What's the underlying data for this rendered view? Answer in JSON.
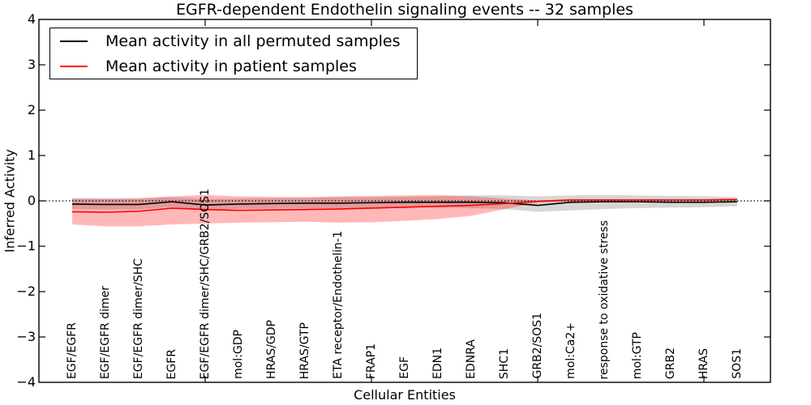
{
  "chart_data": {
    "type": "line",
    "title": "EGFR-dependent Endothelin signaling events -- 32 samples",
    "xlabel": "Cellular Entities",
    "ylabel": "Inferred Activity",
    "ylim": [
      -4,
      4
    ],
    "yticks": [
      4,
      3,
      2,
      1,
      0,
      -1,
      -2,
      -3,
      -4
    ],
    "x_major_ticks_at": [
      5,
      10,
      15,
      20
    ],
    "grid": false,
    "zero_reference_line": "dotted",
    "legend_position": "upper left",
    "categories": [
      "EGF/EGFR",
      "EGF/EGFR dimer",
      "EGF/EGFR dimer/SHC",
      "EGFR",
      "EGF/EGFR dimer/SHC/GRB2/SOS1",
      "mol:GDP",
      "HRAS/GDP",
      "HRAS/GTP",
      "ETA receptor/Endothelin-1",
      "FRAP1",
      "EGF",
      "EDN1",
      "EDNRA",
      "SHC1",
      "GRB2/SOS1",
      "mol:Ca2+",
      "response to oxidative stress",
      "mol:GTP",
      "GRB2",
      "HRAS",
      "SOS1"
    ],
    "series": [
      {
        "name": "Mean activity in all permuted samples",
        "color": "#000000",
        "band_color": "rgba(0,0,0,0.16)",
        "values": [
          -0.07,
          -0.08,
          -0.08,
          -0.02,
          -0.09,
          -0.07,
          -0.06,
          -0.05,
          -0.05,
          -0.04,
          -0.03,
          -0.03,
          -0.03,
          -0.04,
          -0.1,
          -0.03,
          -0.02,
          -0.02,
          -0.03,
          -0.03,
          -0.02
        ],
        "band_upper": [
          0.06,
          0.05,
          0.05,
          0.08,
          0.04,
          0.05,
          0.06,
          0.07,
          0.08,
          0.08,
          0.09,
          0.1,
          0.12,
          0.12,
          0.1,
          0.12,
          0.13,
          0.12,
          0.11,
          0.1,
          0.08
        ],
        "band_lower": [
          -0.18,
          -0.19,
          -0.19,
          -0.13,
          -0.2,
          -0.18,
          -0.17,
          -0.16,
          -0.16,
          -0.15,
          -0.14,
          -0.15,
          -0.16,
          -0.18,
          -0.24,
          -0.21,
          -0.18,
          -0.16,
          -0.15,
          -0.14,
          -0.12
        ]
      },
      {
        "name": "Mean activity in patient samples",
        "color": "#ff0000",
        "band_color": "rgba(255,0,0,0.28)",
        "values": [
          -0.24,
          -0.25,
          -0.23,
          -0.16,
          -0.19,
          -0.21,
          -0.2,
          -0.19,
          -0.18,
          -0.16,
          -0.14,
          -0.12,
          -0.1,
          -0.06,
          -0.01,
          0.02,
          0.02,
          0.02,
          0.02,
          0.02,
          0.03
        ],
        "band_upper": [
          0.05,
          0.05,
          0.06,
          0.1,
          0.13,
          0.1,
          0.09,
          0.08,
          0.1,
          0.11,
          0.12,
          0.13,
          0.1,
          0.05,
          0.01,
          0.04,
          0.04,
          0.04,
          0.04,
          0.04,
          0.05
        ],
        "band_lower": [
          -0.52,
          -0.56,
          -0.56,
          -0.52,
          -0.5,
          -0.48,
          -0.47,
          -0.46,
          -0.48,
          -0.47,
          -0.44,
          -0.4,
          -0.33,
          -0.18,
          -0.04,
          -0.01,
          -0.01,
          0.0,
          0.0,
          0.0,
          0.01
        ]
      }
    ]
  }
}
